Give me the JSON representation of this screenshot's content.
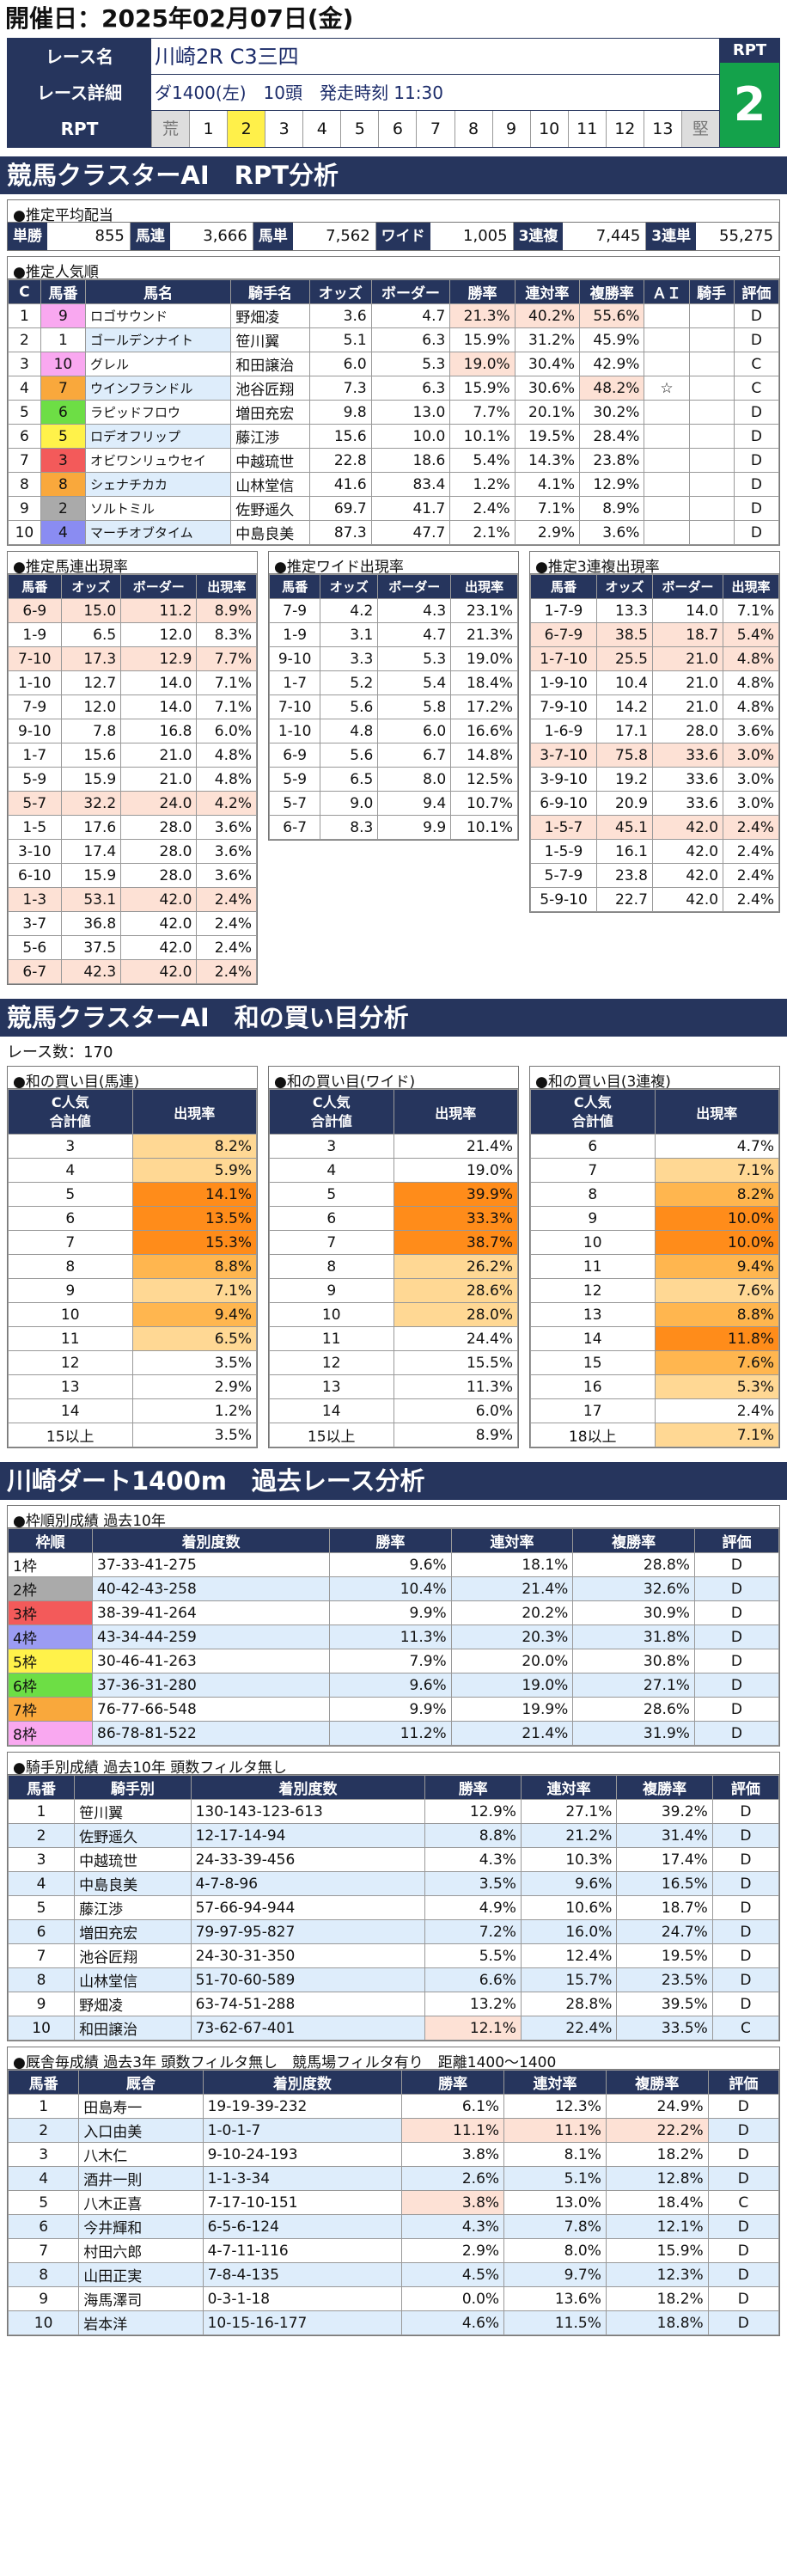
{
  "header": {
    "date": "開催日：2025年02月07日(金)"
  },
  "race": {
    "name_label": "レース名",
    "name": "川崎2R C3三四",
    "detail_label": "レース詳細",
    "detail": "ダ1400(左)　10頭　発走時刻 11:30",
    "rpt_label": "RPT",
    "rpt_cells": [
      "荒",
      "1",
      "2",
      "3",
      "4",
      "5",
      "6",
      "7",
      "8",
      "9",
      "10",
      "11",
      "12",
      "13",
      "堅"
    ],
    "rpt_title": "RPT",
    "rpt_value": "2"
  },
  "rpt_section": {
    "title": "競馬クラスターAI　RPT分析"
  },
  "payout": {
    "title": "●推定平均配当",
    "items": [
      [
        "単勝",
        "855"
      ],
      [
        "馬連",
        "3,666"
      ],
      [
        "馬単",
        "7,562"
      ],
      [
        "ワイド",
        "1,005"
      ],
      [
        "3連複",
        "7,445"
      ],
      [
        "3連単",
        "55,275"
      ]
    ]
  },
  "popularity": {
    "title": "●推定人気順",
    "headers": [
      "C",
      "馬番",
      "馬名",
      "騎手名",
      "オッズ",
      "ボーダー",
      "勝率",
      "連対率",
      "複勝率",
      "ＡＩ",
      "騎手",
      "評価"
    ],
    "rows": [
      [
        "1",
        "9",
        "ロゴサウンド",
        "野畑凌",
        "3.6",
        "4.7",
        "21.3%",
        "40.2%",
        "55.6%",
        "",
        "",
        "D"
      ],
      [
        "2",
        "1",
        "ゴールデンナイト",
        "笹川翼",
        "5.1",
        "6.3",
        "15.9%",
        "31.2%",
        "45.9%",
        "",
        "",
        "D"
      ],
      [
        "3",
        "10",
        "グレル",
        "和田譲治",
        "6.0",
        "5.3",
        "19.0%",
        "30.4%",
        "42.9%",
        "",
        "",
        "C"
      ],
      [
        "4",
        "7",
        "ウインフランドル",
        "池谷匠翔",
        "7.3",
        "6.3",
        "15.9%",
        "30.6%",
        "48.2%",
        "☆",
        "",
        "C"
      ],
      [
        "5",
        "6",
        "ラピッドフロウ",
        "増田充宏",
        "9.8",
        "13.0",
        "7.7%",
        "20.1%",
        "30.2%",
        "",
        "",
        "D"
      ],
      [
        "6",
        "5",
        "ロデオフリップ",
        "藤江渉",
        "15.6",
        "10.0",
        "10.1%",
        "19.5%",
        "28.4%",
        "",
        "",
        "D"
      ],
      [
        "7",
        "3",
        "オビワンリュウセイ",
        "中越琉世",
        "22.8",
        "18.6",
        "5.4%",
        "14.3%",
        "23.8%",
        "",
        "",
        "D"
      ],
      [
        "8",
        "8",
        "シェナチカカ",
        "山林堂信",
        "41.6",
        "83.4",
        "1.2%",
        "4.1%",
        "12.9%",
        "",
        "",
        "D"
      ],
      [
        "9",
        "2",
        "ソルトミル",
        "佐野遥久",
        "69.7",
        "41.7",
        "2.4%",
        "7.1%",
        "8.9%",
        "",
        "",
        "D"
      ],
      [
        "10",
        "4",
        "マーチオブタイム",
        "中島良美",
        "87.3",
        "47.7",
        "2.1%",
        "2.9%",
        "3.6%",
        "",
        "",
        "D"
      ]
    ]
  },
  "umaren": {
    "title": "●推定馬連出現率",
    "headers": [
      "馬番",
      "オッズ",
      "ボーダー",
      "出現率"
    ],
    "rows": [
      [
        "6-9",
        "15.0",
        "11.2",
        "8.9%"
      ],
      [
        "1-9",
        "6.5",
        "12.0",
        "8.3%"
      ],
      [
        "7-10",
        "17.3",
        "12.9",
        "7.7%"
      ],
      [
        "1-10",
        "12.7",
        "14.0",
        "7.1%"
      ],
      [
        "7-9",
        "12.0",
        "14.0",
        "7.1%"
      ],
      [
        "9-10",
        "7.8",
        "16.8",
        "6.0%"
      ],
      [
        "1-7",
        "15.6",
        "21.0",
        "4.8%"
      ],
      [
        "5-9",
        "15.9",
        "21.0",
        "4.8%"
      ],
      [
        "5-7",
        "32.2",
        "24.0",
        "4.2%"
      ],
      [
        "1-5",
        "17.6",
        "28.0",
        "3.6%"
      ],
      [
        "3-10",
        "17.4",
        "28.0",
        "3.6%"
      ],
      [
        "6-10",
        "15.9",
        "28.0",
        "3.6%"
      ],
      [
        "1-3",
        "53.1",
        "42.0",
        "2.4%"
      ],
      [
        "3-7",
        "36.8",
        "42.0",
        "2.4%"
      ],
      [
        "5-6",
        "37.5",
        "42.0",
        "2.4%"
      ],
      [
        "6-7",
        "42.3",
        "42.0",
        "2.4%"
      ]
    ]
  },
  "wide": {
    "title": "●推定ワイド出現率",
    "headers": [
      "馬番",
      "オッズ",
      "ボーダー",
      "出現率"
    ],
    "rows": [
      [
        "7-9",
        "4.2",
        "4.3",
        "23.1%"
      ],
      [
        "1-9",
        "3.1",
        "4.7",
        "21.3%"
      ],
      [
        "9-10",
        "3.3",
        "5.3",
        "19.0%"
      ],
      [
        "1-7",
        "5.2",
        "5.4",
        "18.4%"
      ],
      [
        "7-10",
        "5.6",
        "5.8",
        "17.2%"
      ],
      [
        "1-10",
        "4.8",
        "6.0",
        "16.6%"
      ],
      [
        "6-9",
        "5.6",
        "6.7",
        "14.8%"
      ],
      [
        "5-9",
        "6.5",
        "8.0",
        "12.5%"
      ],
      [
        "5-7",
        "9.0",
        "9.4",
        "10.7%"
      ],
      [
        "6-7",
        "8.3",
        "9.9",
        "10.1%"
      ]
    ]
  },
  "sanrenpuku": {
    "title": "●推定3連複出現率",
    "headers": [
      "馬番",
      "オッズ",
      "ボーダー",
      "出現率"
    ],
    "rows": [
      [
        "1-7-9",
        "13.3",
        "14.0",
        "7.1%"
      ],
      [
        "6-7-9",
        "38.5",
        "18.7",
        "5.4%"
      ],
      [
        "1-7-10",
        "25.5",
        "21.0",
        "4.8%"
      ],
      [
        "1-9-10",
        "10.4",
        "21.0",
        "4.8%"
      ],
      [
        "7-9-10",
        "14.2",
        "21.0",
        "4.8%"
      ],
      [
        "1-6-9",
        "17.1",
        "28.0",
        "3.6%"
      ],
      [
        "3-7-10",
        "75.8",
        "33.6",
        "3.0%"
      ],
      [
        "3-9-10",
        "19.2",
        "33.6",
        "3.0%"
      ],
      [
        "6-9-10",
        "20.9",
        "33.6",
        "3.0%"
      ],
      [
        "1-5-7",
        "45.1",
        "42.0",
        "2.4%"
      ],
      [
        "1-5-9",
        "16.1",
        "42.0",
        "2.4%"
      ],
      [
        "5-7-9",
        "23.8",
        "42.0",
        "2.4%"
      ],
      [
        "5-9-10",
        "22.7",
        "42.0",
        "2.4%"
      ]
    ]
  },
  "wa_section": {
    "title": "競馬クラスターAI　和の買い目分析",
    "count": "レース数：170"
  },
  "wa": [
    {
      "title": "●和の買い目(馬連)",
      "h1": "C人気\n合計値",
      "h2": "出現率",
      "rows": [
        [
          "3",
          "8.2%"
        ],
        [
          "4",
          "5.9%"
        ],
        [
          "5",
          "14.1%"
        ],
        [
          "6",
          "13.5%"
        ],
        [
          "7",
          "15.3%"
        ],
        [
          "8",
          "8.8%"
        ],
        [
          "9",
          "7.1%"
        ],
        [
          "10",
          "9.4%"
        ],
        [
          "11",
          "6.5%"
        ],
        [
          "12",
          "3.5%"
        ],
        [
          "13",
          "2.9%"
        ],
        [
          "14",
          "1.2%"
        ],
        [
          "15以上",
          "3.5%"
        ]
      ]
    },
    {
      "title": "●和の買い目(ワイド)",
      "h1": "C人気\n合計値",
      "h2": "出現率",
      "rows": [
        [
          "3",
          "21.4%"
        ],
        [
          "4",
          "19.0%"
        ],
        [
          "5",
          "39.9%"
        ],
        [
          "6",
          "33.3%"
        ],
        [
          "7",
          "38.7%"
        ],
        [
          "8",
          "26.2%"
        ],
        [
          "9",
          "28.6%"
        ],
        [
          "10",
          "28.0%"
        ],
        [
          "11",
          "24.4%"
        ],
        [
          "12",
          "15.5%"
        ],
        [
          "13",
          "11.3%"
        ],
        [
          "14",
          "6.0%"
        ],
        [
          "15以上",
          "8.9%"
        ]
      ]
    },
    {
      "title": "●和の買い目(3連複)",
      "h1": "C人気\n合計値",
      "h2": "出現率",
      "rows": [
        [
          "6",
          "4.7%"
        ],
        [
          "7",
          "7.1%"
        ],
        [
          "8",
          "8.2%"
        ],
        [
          "9",
          "10.0%"
        ],
        [
          "10",
          "10.0%"
        ],
        [
          "11",
          "9.4%"
        ],
        [
          "12",
          "7.6%"
        ],
        [
          "13",
          "8.8%"
        ],
        [
          "14",
          "11.8%"
        ],
        [
          "15",
          "7.6%"
        ],
        [
          "16",
          "5.3%"
        ],
        [
          "17",
          "2.4%"
        ],
        [
          "18以上",
          "7.1%"
        ]
      ]
    }
  ],
  "past_section": {
    "title": "川崎ダート1400m　過去レース分析"
  },
  "waku": {
    "title": "●枠順別成績 過去10年",
    "headers": [
      "枠順",
      "着別度数",
      "勝率",
      "連対率",
      "複勝率",
      "評価"
    ],
    "rows": [
      [
        "1枠",
        "37-33-41-275",
        "9.6%",
        "18.1%",
        "28.8%",
        "D"
      ],
      [
        "2枠",
        "40-42-43-258",
        "10.4%",
        "21.4%",
        "32.6%",
        "D"
      ],
      [
        "3枠",
        "38-39-41-264",
        "9.9%",
        "20.2%",
        "30.9%",
        "D"
      ],
      [
        "4枠",
        "43-34-44-259",
        "11.3%",
        "20.3%",
        "31.8%",
        "D"
      ],
      [
        "5枠",
        "30-46-41-263",
        "7.9%",
        "20.0%",
        "30.8%",
        "D"
      ],
      [
        "6枠",
        "37-36-31-280",
        "9.6%",
        "19.0%",
        "27.1%",
        "D"
      ],
      [
        "7枠",
        "76-77-66-548",
        "9.9%",
        "19.9%",
        "28.6%",
        "D"
      ],
      [
        "8枠",
        "86-78-81-522",
        "11.2%",
        "21.4%",
        "31.9%",
        "D"
      ]
    ]
  },
  "jockey": {
    "title": "●騎手別成績 過去10年 頭数フィルタ無し",
    "headers": [
      "馬番",
      "騎手別",
      "着別度数",
      "勝率",
      "連対率",
      "複勝率",
      "評価"
    ],
    "rows": [
      [
        "1",
        "笹川翼",
        "130-143-123-613",
        "12.9%",
        "27.1%",
        "39.2%",
        "D"
      ],
      [
        "2",
        "佐野遥久",
        "12-17-14-94",
        "8.8%",
        "21.2%",
        "31.4%",
        "D"
      ],
      [
        "3",
        "中越琉世",
        "24-33-39-456",
        "4.3%",
        "10.3%",
        "17.4%",
        "D"
      ],
      [
        "4",
        "中島良美",
        "4-7-8-96",
        "3.5%",
        "9.6%",
        "16.5%",
        "D"
      ],
      [
        "5",
        "藤江渉",
        "57-66-94-944",
        "4.9%",
        "10.6%",
        "18.7%",
        "D"
      ],
      [
        "6",
        "増田充宏",
        "79-97-95-827",
        "7.2%",
        "16.0%",
        "24.7%",
        "D"
      ],
      [
        "7",
        "池谷匠翔",
        "24-30-31-350",
        "5.5%",
        "12.4%",
        "19.5%",
        "D"
      ],
      [
        "8",
        "山林堂信",
        "51-70-60-589",
        "6.6%",
        "15.7%",
        "23.5%",
        "D"
      ],
      [
        "9",
        "野畑凌",
        "63-74-51-288",
        "13.2%",
        "28.8%",
        "39.5%",
        "D"
      ],
      [
        "10",
        "和田譲治",
        "73-62-67-401",
        "12.1%",
        "22.4%",
        "33.5%",
        "C"
      ]
    ]
  },
  "trainer": {
    "title": "●厩舎毎成績 過去3年 頭数フィルタ無し　競馬場フィルタ有り　距離1400～1400",
    "headers": [
      "馬番",
      "厩舎",
      "着別度数",
      "勝率",
      "連対率",
      "複勝率",
      "評価"
    ],
    "rows": [
      [
        "1",
        "田島寿一",
        "19-19-39-232",
        "6.1%",
        "12.3%",
        "24.9%",
        "D"
      ],
      [
        "2",
        "入口由美",
        "1-0-1-7",
        "11.1%",
        "11.1%",
        "22.2%",
        "D"
      ],
      [
        "3",
        "八木仁",
        "9-10-24-193",
        "3.8%",
        "8.1%",
        "18.2%",
        "D"
      ],
      [
        "4",
        "酒井一則",
        "1-1-3-34",
        "2.6%",
        "5.1%",
        "12.8%",
        "D"
      ],
      [
        "5",
        "八木正喜",
        "7-17-10-151",
        "3.8%",
        "13.0%",
        "18.4%",
        "C"
      ],
      [
        "6",
        "今井輝和",
        "6-5-6-124",
        "4.3%",
        "7.8%",
        "12.1%",
        "D"
      ],
      [
        "7",
        "村田六郎",
        "4-7-11-116",
        "2.9%",
        "8.0%",
        "15.9%",
        "D"
      ],
      [
        "8",
        "山田正実",
        "7-8-4-135",
        "4.5%",
        "9.7%",
        "12.3%",
        "D"
      ],
      [
        "9",
        "海馬澤司",
        "0-3-1-18",
        "0.0%",
        "13.6%",
        "18.2%",
        "D"
      ],
      [
        "10",
        "岩本洋",
        "10-15-16-177",
        "4.6%",
        "11.5%",
        "18.8%",
        "D"
      ]
    ]
  }
}
